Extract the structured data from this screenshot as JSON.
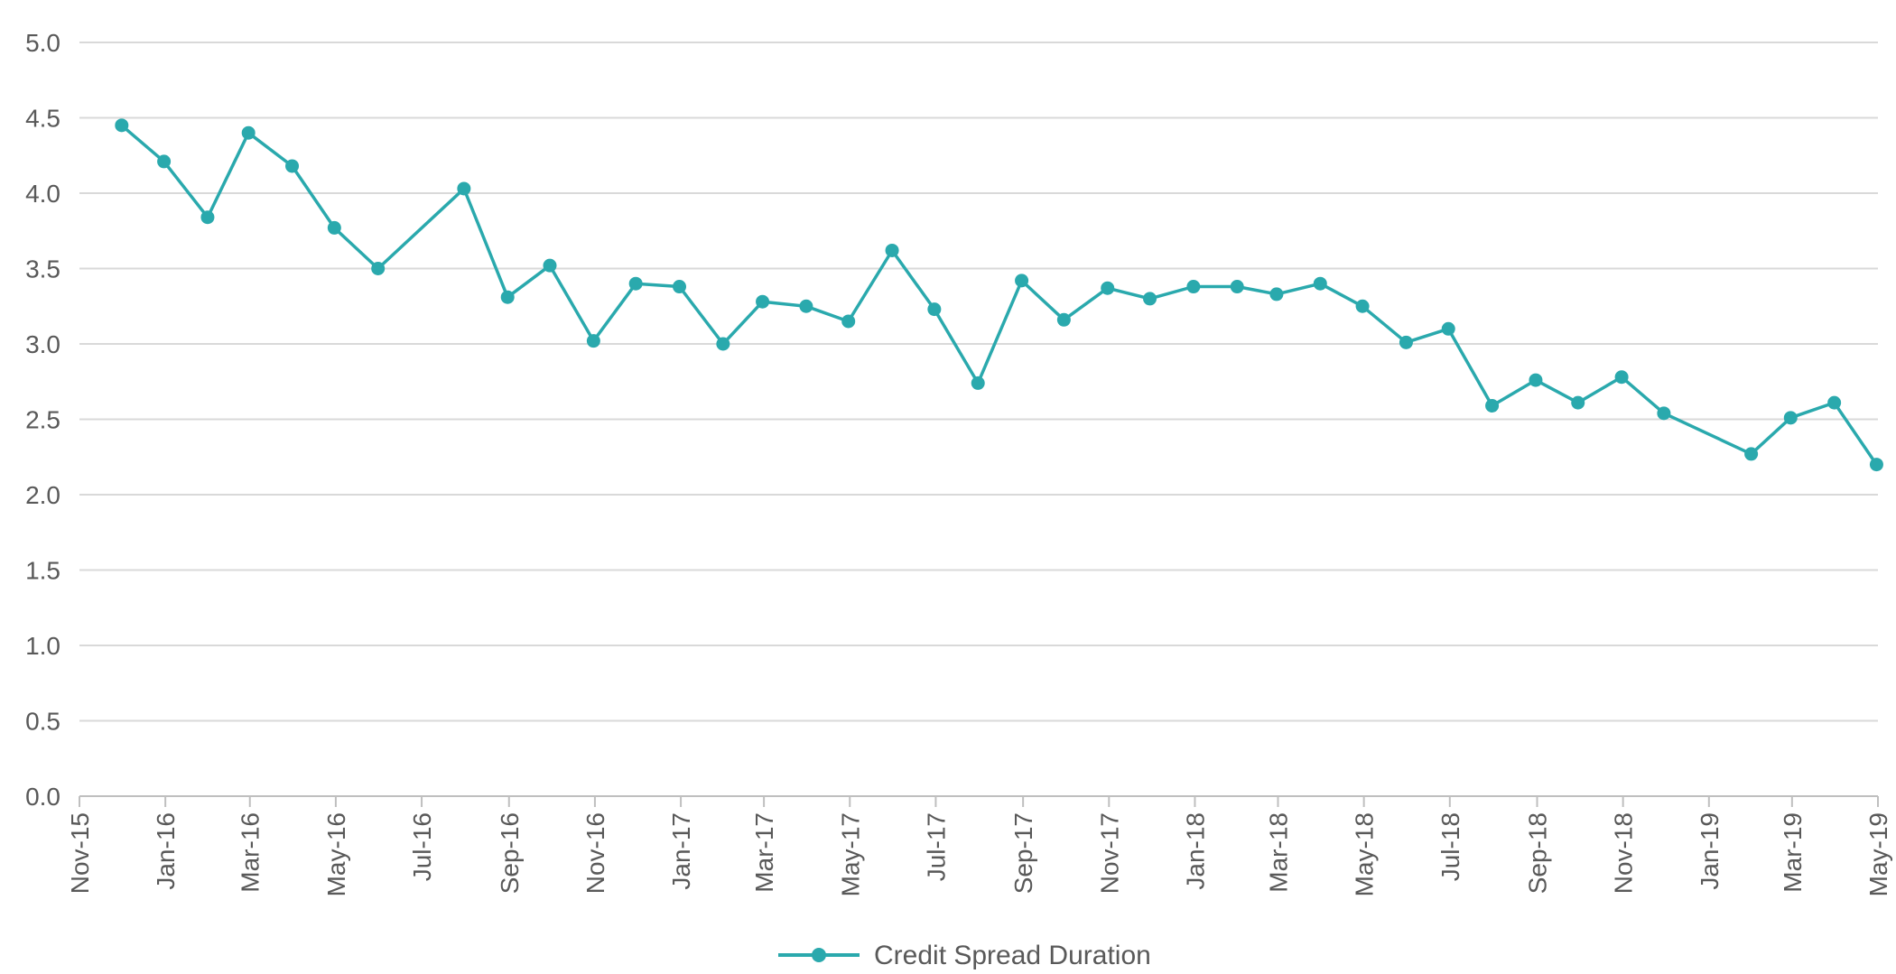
{
  "chart_data": {
    "type": "line",
    "title": "",
    "xlabel": "",
    "ylabel": "",
    "x_range": [
      "2015-11-01",
      "2019-05-01"
    ],
    "ylim": [
      0,
      5
    ],
    "y_ticks": [
      "0.0",
      "0.5",
      "1.0",
      "1.5",
      "2.0",
      "2.5",
      "3.0",
      "3.5",
      "4.0",
      "4.5",
      "5.0"
    ],
    "x_ticks": [
      {
        "date": "2015-11-01",
        "label": "Nov-15"
      },
      {
        "date": "2016-01-01",
        "label": "Jan-16"
      },
      {
        "date": "2016-03-01",
        "label": "Mar-16"
      },
      {
        "date": "2016-05-01",
        "label": "May-16"
      },
      {
        "date": "2016-07-01",
        "label": "Jul-16"
      },
      {
        "date": "2016-09-01",
        "label": "Sep-16"
      },
      {
        "date": "2016-11-01",
        "label": "Nov-16"
      },
      {
        "date": "2017-01-01",
        "label": "Jan-17"
      },
      {
        "date": "2017-03-01",
        "label": "Mar-17"
      },
      {
        "date": "2017-05-01",
        "label": "May-17"
      },
      {
        "date": "2017-07-01",
        "label": "Jul-17"
      },
      {
        "date": "2017-09-01",
        "label": "Sep-17"
      },
      {
        "date": "2017-11-01",
        "label": "Nov-17"
      },
      {
        "date": "2018-01-01",
        "label": "Jan-18"
      },
      {
        "date": "2018-03-01",
        "label": "Mar-18"
      },
      {
        "date": "2018-05-01",
        "label": "May-18"
      },
      {
        "date": "2018-07-01",
        "label": "Jul-18"
      },
      {
        "date": "2018-09-01",
        "label": "Sep-18"
      },
      {
        "date": "2018-11-01",
        "label": "Nov-18"
      },
      {
        "date": "2019-01-01",
        "label": "Jan-19"
      },
      {
        "date": "2019-03-01",
        "label": "Mar-19"
      },
      {
        "date": "2019-05-01",
        "label": "May-19"
      }
    ],
    "grid": true,
    "legend_position": "bottom-center",
    "colors": {
      "series": "#2aa9ad",
      "grid": "#d9d9d9",
      "text": "#595959"
    },
    "series": [
      {
        "name": "Credit Spread Duration",
        "points": [
          {
            "x": "2015-12-01",
            "y": 4.45
          },
          {
            "x": "2015-12-31",
            "y": 4.21
          },
          {
            "x": "2016-01-31",
            "y": 3.84
          },
          {
            "x": "2016-02-29",
            "y": 4.4
          },
          {
            "x": "2016-03-31",
            "y": 4.18
          },
          {
            "x": "2016-04-30",
            "y": 3.77
          },
          {
            "x": "2016-05-31",
            "y": 3.5
          },
          {
            "x": "2016-07-31",
            "y": 4.03
          },
          {
            "x": "2016-08-31",
            "y": 3.31
          },
          {
            "x": "2016-09-30",
            "y": 3.52
          },
          {
            "x": "2016-10-31",
            "y": 3.02
          },
          {
            "x": "2016-11-30",
            "y": 3.4
          },
          {
            "x": "2016-12-31",
            "y": 3.38
          },
          {
            "x": "2017-01-31",
            "y": 3.0
          },
          {
            "x": "2017-02-28",
            "y": 3.28
          },
          {
            "x": "2017-03-31",
            "y": 3.25
          },
          {
            "x": "2017-04-30",
            "y": 3.15
          },
          {
            "x": "2017-05-31",
            "y": 3.62
          },
          {
            "x": "2017-06-30",
            "y": 3.23
          },
          {
            "x": "2017-07-31",
            "y": 2.74
          },
          {
            "x": "2017-08-31",
            "y": 3.42
          },
          {
            "x": "2017-09-30",
            "y": 3.16
          },
          {
            "x": "2017-10-31",
            "y": 3.37
          },
          {
            "x": "2017-11-30",
            "y": 3.3
          },
          {
            "x": "2017-12-31",
            "y": 3.38
          },
          {
            "x": "2018-01-31",
            "y": 3.38
          },
          {
            "x": "2018-02-28",
            "y": 3.33
          },
          {
            "x": "2018-03-31",
            "y": 3.4
          },
          {
            "x": "2018-04-30",
            "y": 3.25
          },
          {
            "x": "2018-05-31",
            "y": 3.01
          },
          {
            "x": "2018-06-30",
            "y": 3.1
          },
          {
            "x": "2018-07-31",
            "y": 2.59
          },
          {
            "x": "2018-08-31",
            "y": 2.76
          },
          {
            "x": "2018-09-30",
            "y": 2.61
          },
          {
            "x": "2018-10-31",
            "y": 2.78
          },
          {
            "x": "2018-11-30",
            "y": 2.54
          },
          {
            "x": "2019-01-31",
            "y": 2.27
          },
          {
            "x": "2019-02-28",
            "y": 2.51
          },
          {
            "x": "2019-03-31",
            "y": 2.61
          },
          {
            "x": "2019-04-30",
            "y": 2.2
          }
        ]
      }
    ]
  }
}
